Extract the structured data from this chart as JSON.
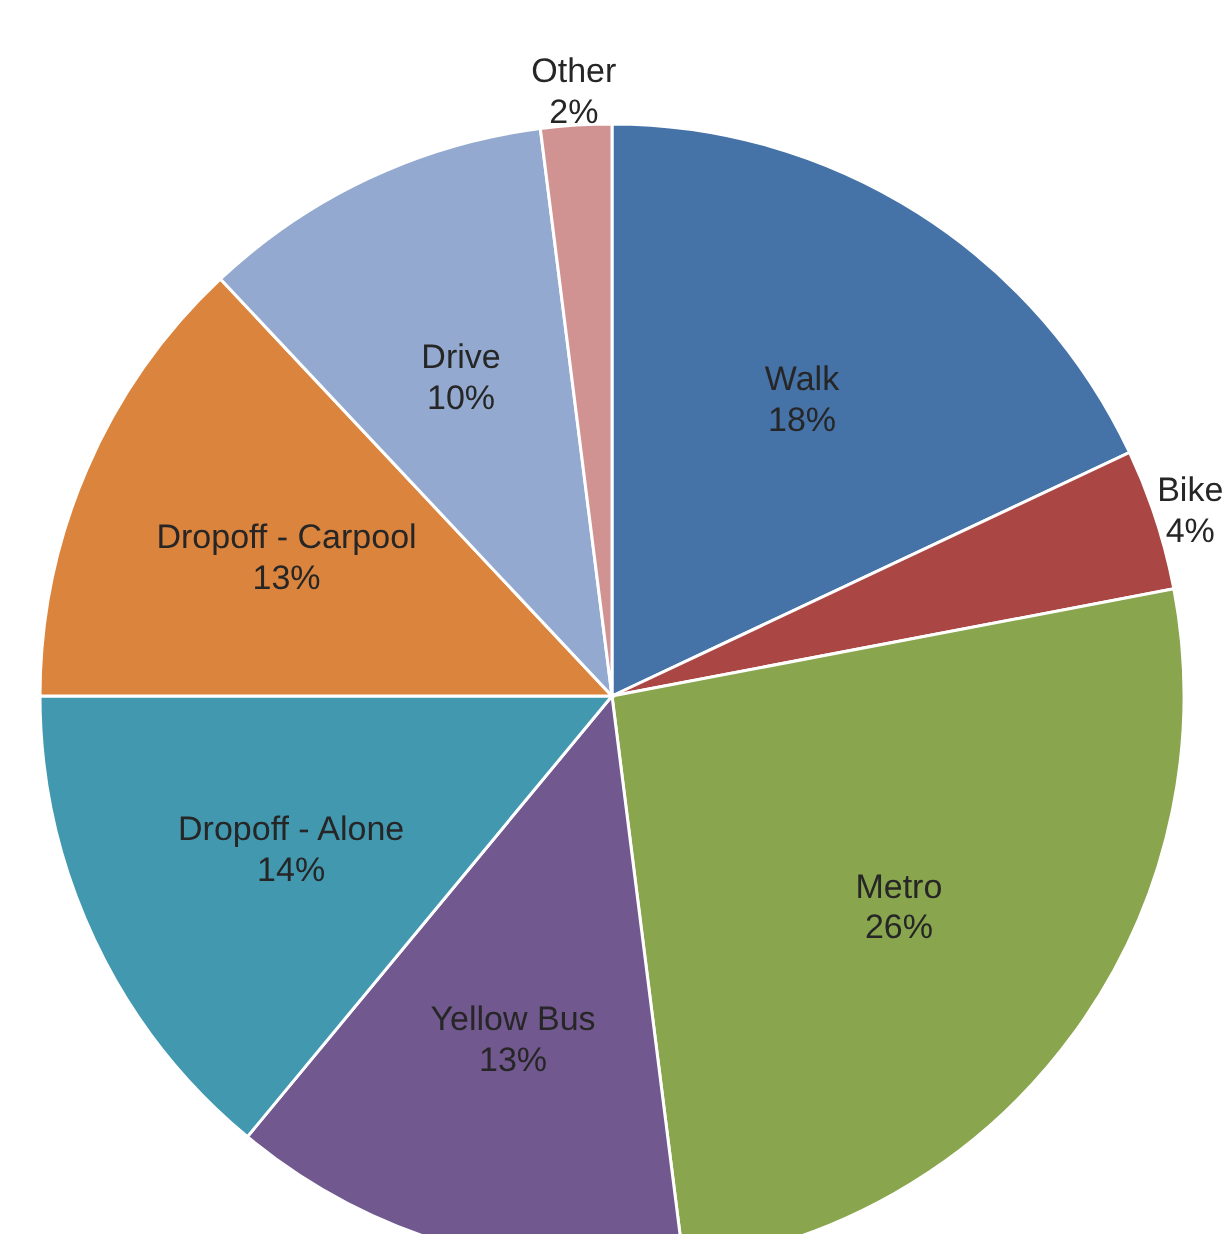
{
  "chart_data": {
    "type": "pie",
    "categories": [
      "Walk",
      "Bike",
      "Metro",
      "Yellow Bus",
      "Dropoff - Alone",
      "Dropoff - Carpool",
      "Drive",
      "Other"
    ],
    "values": [
      18,
      4,
      26,
      13,
      14,
      13,
      10,
      2
    ],
    "colors": [
      "#4572a7",
      "#aa4643",
      "#89a54e",
      "#71588f",
      "#4198af",
      "#db843d",
      "#93a9cf",
      "#d19392"
    ],
    "value_labels": [
      "18%",
      "4%",
      "26%",
      "13%",
      "14%",
      "13%",
      "10%",
      "2%"
    ]
  }
}
